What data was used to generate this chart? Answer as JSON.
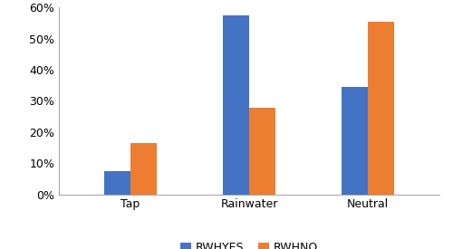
{
  "categories": [
    "Tap",
    "Rainwater",
    "Neutral"
  ],
  "rwhyes_values": [
    0.075,
    0.575,
    0.345
  ],
  "rwhno_values": [
    0.165,
    0.278,
    0.555
  ],
  "rwhyes_color": "#4472C4",
  "rwhno_color": "#ED7D31",
  "rwhyes_label": "RWHYES",
  "rwhno_label": "RWHNO",
  "ylim": [
    0,
    0.6
  ],
  "yticks": [
    0.0,
    0.1,
    0.2,
    0.3,
    0.4,
    0.5,
    0.6
  ],
  "bar_width": 0.22,
  "background_color": "#ffffff"
}
